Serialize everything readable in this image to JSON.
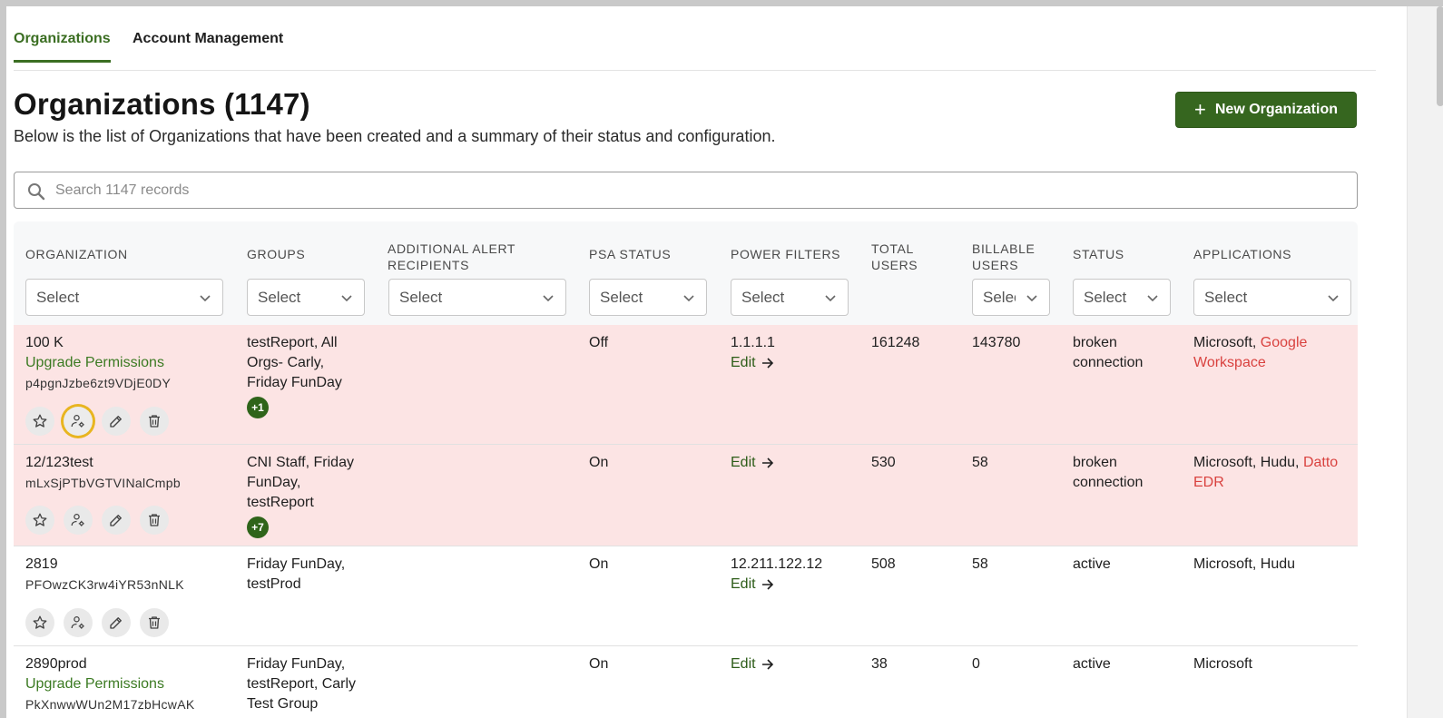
{
  "tabs": [
    {
      "label": "Organizations"
    },
    {
      "label": "Account Management"
    }
  ],
  "page": {
    "title": "Organizations (1147)",
    "subtitle": "Below is the list of Organizations that have been created and a summary of their status and configuration.",
    "new_button": "New Organization"
  },
  "search": {
    "placeholder": "Search 1147 records"
  },
  "columns": {
    "organization": "ORGANIZATION",
    "groups": "GROUPS",
    "alert_line1": "ADDITIONAL ALERT",
    "alert_line2": "RECIPIENTS",
    "psa": "PSA STATUS",
    "power": "POWER FILTERS",
    "total_line1": "TOTAL",
    "total_line2": "USERS",
    "billable_line1": "BILLABLE",
    "billable_line2": "USERS",
    "status": "STATUS",
    "applications": "APPLICATIONS"
  },
  "filters": {
    "organization": "Select",
    "groups": "Select",
    "alert": "Select",
    "psa": "Select",
    "power": "Select",
    "billable": "Select",
    "status": "Select",
    "applications": "Select"
  },
  "rows": [
    {
      "name": "100 K",
      "upgrade": "Upgrade Permissions",
      "id": "p4pgnJzbe6zt9VDjE0DY",
      "groups_l1": "testReport, All",
      "groups_l2": "Orgs- Carly,",
      "groups_l3": "Friday FunDay",
      "badge": "+1",
      "psa": "Off",
      "power_ip": "1.1.1.1",
      "edit": "Edit",
      "total": "161248",
      "billable": "143780",
      "status_l1": "broken",
      "status_l2": "connection",
      "apps_plain": "Microsoft,",
      "apps_red_l1": "Google",
      "apps_red_l2": "Workspace"
    },
    {
      "name": "12/123test",
      "id": "mLxSjPTbVGTVINalCmpb",
      "groups_l1": "CNI Staff, Friday",
      "groups_l2": "FunDay,",
      "groups_l3": "testReport",
      "badge": "+7",
      "psa": "On",
      "edit": "Edit",
      "total": "530",
      "billable": "58",
      "status_l1": "broken",
      "status_l2": "connection",
      "apps_plain": "Microsoft, Hudu,",
      "apps_red_l1": "Datto",
      "apps_red_l2": "EDR"
    },
    {
      "name": "2819",
      "id": "PFOwzCK3rw4iYR53nNLK",
      "groups_l1": "Friday FunDay,",
      "groups_l2": "testProd",
      "psa": "On",
      "power_ip": "12.211.122.12",
      "edit": "Edit",
      "total": "508",
      "billable": "58",
      "status_l1": "active",
      "apps_plain": "Microsoft, Hudu"
    },
    {
      "name": "2890prod",
      "upgrade": "Upgrade Permissions",
      "id": "PkXnwwWUn2M17zbHcwAK",
      "groups_l1": "Friday FunDay,",
      "groups_l2": "testReport, Carly",
      "groups_l3": "Test Group",
      "psa": "On",
      "edit": "Edit",
      "total": "38",
      "billable": "0",
      "status_l1": "active",
      "apps_plain": "Microsoft"
    }
  ],
  "icons": {
    "search": "search-icon",
    "chevron": "chevron-down-icon",
    "star": "star-icon",
    "user_settings": "user-settings-icon",
    "edit": "edit-icon",
    "trash": "trash-icon",
    "arrow": "arrow-right-icon"
  },
  "colors": {
    "brand_green": "#36661f",
    "alert_row": "#fce4e4",
    "error_red": "#d9423f",
    "focus_ring": "#e8b520"
  }
}
